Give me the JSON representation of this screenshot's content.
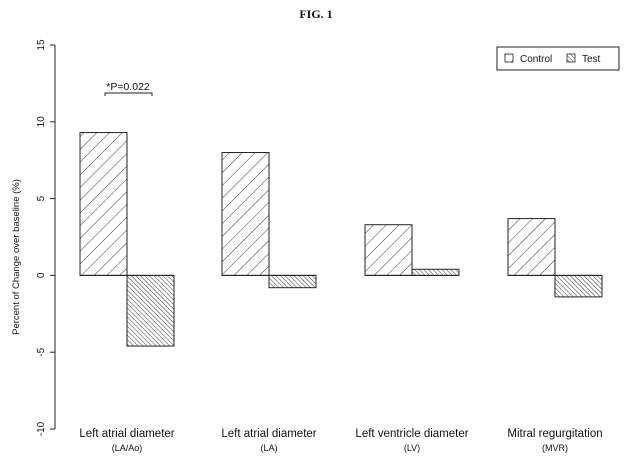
{
  "figure_label": "FIG. 1",
  "chart_data": {
    "type": "bar",
    "title": "",
    "xlabel": "",
    "ylabel": "Percent of Change over baseline (%)",
    "ylim": [
      -10,
      15
    ],
    "yticks": [
      -10,
      -5,
      0,
      5,
      10,
      15
    ],
    "categories": [
      {
        "label": "Left atrial diameter",
        "sublabel": "(LA/Ao)"
      },
      {
        "label": "Left atrial diameter",
        "sublabel": "(LA)"
      },
      {
        "label": "Left ventricle diameter",
        "sublabel": "(LV)"
      },
      {
        "label": "Mitral regurgitation",
        "sublabel": "(MVR)"
      }
    ],
    "series": [
      {
        "name": "Control",
        "values": [
          9.3,
          8.0,
          3.3,
          3.7
        ],
        "pattern": "wide-diagonal"
      },
      {
        "name": "Test",
        "values": [
          -4.6,
          -0.8,
          0.4,
          -1.4
        ],
        "pattern": "dense-diagonal"
      }
    ],
    "legend_position": "top-right",
    "annotation": {
      "text": "*P=0.022",
      "category_index": 0
    },
    "grid": false
  }
}
